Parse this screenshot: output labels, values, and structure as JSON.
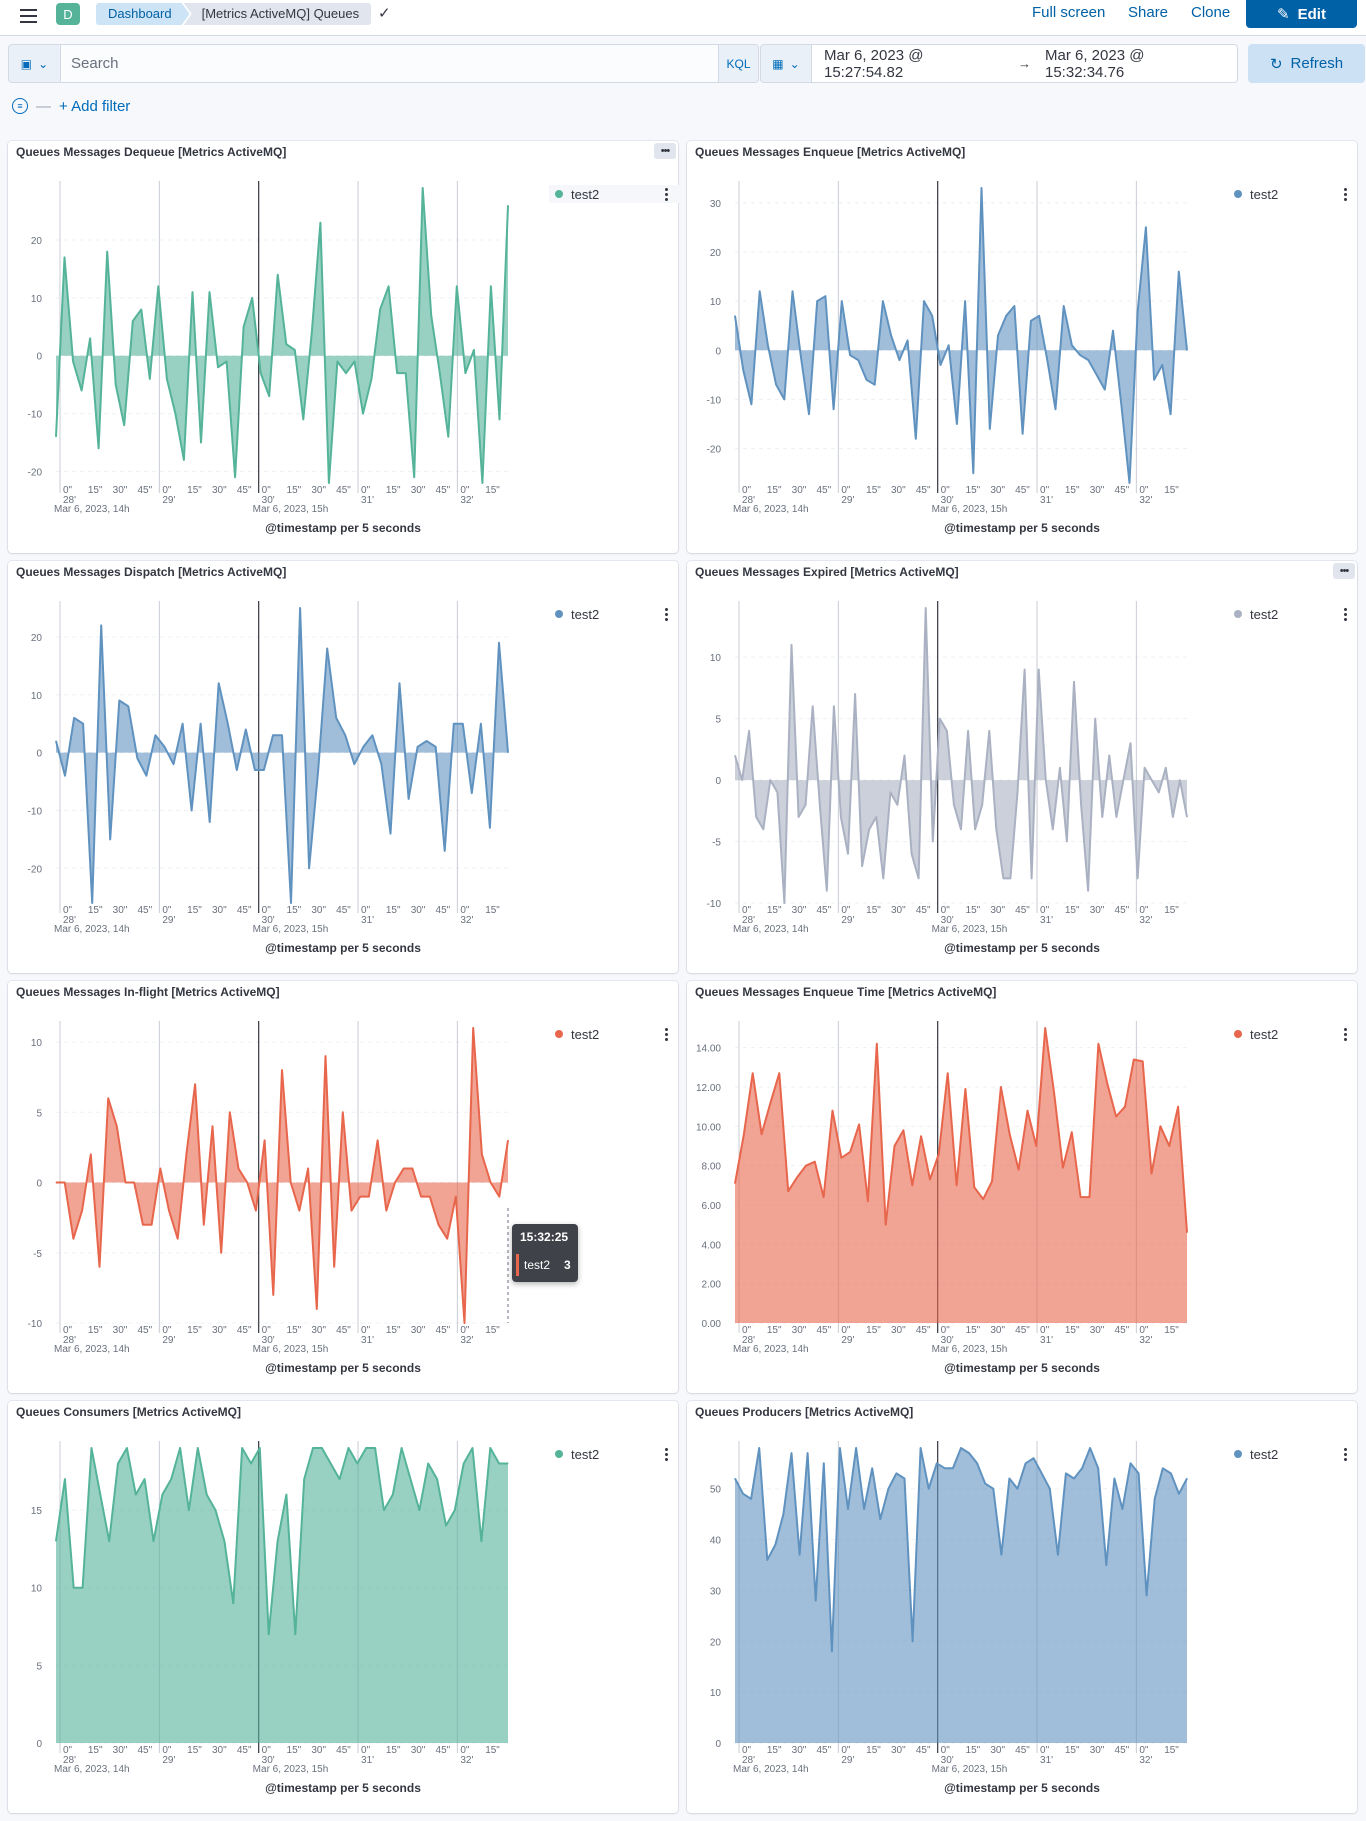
{
  "header": {
    "space_initial": "D",
    "breadcrumb": [
      "Dashboard",
      "[Metrics ActiveMQ] Queues"
    ],
    "full_screen": "Full screen",
    "share": "Share",
    "clone": "Clone",
    "edit": "Edit"
  },
  "query": {
    "search_placeholder": "Search",
    "language": "KQL",
    "start": "Mar 6, 2023 @ 15:27:54.82",
    "arrow": "→",
    "end": "Mar 6, 2023 @ 15:32:34.76",
    "refresh": "Refresh",
    "add_filter": "+ Add filter"
  },
  "axis": {
    "xtitle": "@timestamp per 5 seconds",
    "tick_groups": [
      {
        "labels": [
          "0\"",
          "15\"",
          "30\"",
          "45\""
        ],
        "minute": "28'",
        "date": "Mar 6, 2023, 14h"
      },
      {
        "labels": [
          "0\"",
          "15\"",
          "30\"",
          "45\""
        ],
        "minute": "29'",
        "date": ""
      },
      {
        "labels": [
          "0\"",
          "15\"",
          "30\"",
          "45\""
        ],
        "minute": "30'",
        "date": "Mar 6, 2023, 15h"
      },
      {
        "labels": [
          "0\"",
          "15\"",
          "30\"",
          "45\""
        ],
        "minute": "31'",
        "date": ""
      },
      {
        "labels": [
          "0\"",
          "15\""
        ],
        "minute": "32'",
        "date": ""
      }
    ]
  },
  "tooltip": {
    "time": "15:32:25",
    "series": "test2",
    "value": "3"
  },
  "panels": [
    {
      "title": "Queues Messages Dequeue [Metrics ActiveMQ]",
      "legend": "test2",
      "color": "#54b399",
      "show_options": true,
      "chart_data": {
        "type": "area",
        "series": [
          {
            "name": "test2",
            "values": [
              -14,
              17,
              -1,
              -6,
              3,
              -16,
              18,
              -5,
              -12,
              6,
              8,
              -4,
              12,
              -4,
              -10,
              -18,
              11,
              -15,
              11,
              -2,
              -1,
              -21,
              5,
              10,
              -3,
              -7,
              14,
              2,
              1,
              -11,
              4,
              23,
              -22,
              -1,
              -3,
              -1,
              -10,
              -4,
              8,
              12,
              -3,
              -3,
              -21,
              29,
              7,
              -3,
              -14,
              12,
              -3,
              1,
              -22,
              12,
              -11,
              26
            ]
          }
        ],
        "ylim": [
          -22,
          29
        ],
        "yticks": [
          -20,
          -10,
          0,
          10,
          20
        ]
      }
    },
    {
      "title": "Queues Messages Enqueue [Metrics ActiveMQ]",
      "legend": "test2",
      "color": "#6092c0",
      "show_options": false,
      "chart_data": {
        "type": "area",
        "series": [
          {
            "name": "test2",
            "values": [
              7,
              -4,
              -11,
              12,
              1,
              -7,
              -10,
              12,
              -1,
              -13,
              10,
              11,
              -12,
              10,
              -1,
              -2,
              -6,
              -7,
              10,
              3,
              -2,
              2,
              -18,
              10,
              7,
              -3,
              1,
              -15,
              10,
              -25,
              33,
              -16,
              3,
              7,
              9,
              -17,
              6,
              7,
              -2,
              -12,
              9,
              1,
              -1,
              -2,
              -5,
              -8,
              4,
              -11,
              -27,
              8,
              25,
              -6,
              -3,
              -13,
              16,
              0
            ]
          }
        ],
        "ylim": [
          -27,
          33
        ],
        "yticks": [
          -20,
          -10,
          0,
          10,
          20,
          30
        ]
      }
    },
    {
      "title": "Queues Messages Dispatch [Metrics ActiveMQ]",
      "legend": "test2",
      "color": "#6092c0",
      "show_options": false,
      "chart_data": {
        "type": "area",
        "series": [
          {
            "name": "test2",
            "values": [
              2,
              -4,
              6,
              5,
              -26,
              22,
              -15,
              9,
              8,
              -1,
              -4,
              3,
              1,
              -2,
              5,
              -10,
              5,
              -12,
              12,
              5,
              -3,
              4,
              -3,
              -3,
              3,
              3,
              -26,
              25,
              -20,
              -3,
              18,
              6,
              3,
              -2,
              1,
              3,
              -2,
              -14,
              12,
              -8,
              1,
              2,
              1,
              -17,
              5,
              5,
              -7,
              5,
              -13,
              19,
              0
            ]
          }
        ],
        "ylim": [
          -26,
          25
        ],
        "yticks": [
          -20,
          -10,
          0,
          10,
          20
        ]
      }
    },
    {
      "title": "Queues Messages Expired [Metrics ActiveMQ]",
      "legend": "test2",
      "color": "#aab1c2",
      "show_options": true,
      "chart_data": {
        "type": "area",
        "series": [
          {
            "name": "test2",
            "values": [
              2,
              0,
              4,
              -3,
              -4,
              0,
              -1,
              -10,
              11,
              -3,
              -2,
              6,
              -2,
              -9,
              6,
              -3,
              -6,
              7,
              -7,
              -4,
              -3,
              -8,
              -1,
              -2,
              2,
              -6,
              -8,
              14,
              -5,
              5,
              4,
              -2,
              -4,
              4,
              -4,
              -2,
              4,
              -4,
              -8,
              -8,
              -1,
              9,
              -8,
              9,
              0,
              -4,
              1,
              -5,
              8,
              -2,
              -9,
              5,
              -3,
              2,
              -3,
              0,
              3,
              -8,
              1,
              0,
              -1,
              1,
              -3,
              0,
              -3
            ]
          }
        ],
        "ylim": [
          -10,
          14
        ],
        "yticks": [
          -10,
          -5,
          0,
          5,
          10
        ]
      }
    },
    {
      "title": "Queues Messages In-flight [Metrics ActiveMQ]",
      "legend": "test2",
      "color": "#e7664c",
      "show_options": false,
      "chart_data": {
        "type": "area",
        "series": [
          {
            "name": "test2",
            "values": [
              0,
              0,
              -4,
              -2,
              2,
              -6,
              6,
              4,
              0,
              0,
              -3,
              -3,
              1,
              -2,
              -4,
              2,
              7,
              -3,
              4,
              -5,
              5,
              1,
              0,
              -2,
              3,
              -8,
              8,
              0,
              -2,
              1,
              -9,
              9,
              -6,
              5,
              -2,
              -1,
              -1,
              3,
              -2,
              0,
              1,
              1,
              -1,
              -1,
              -3,
              -4,
              -1,
              -10,
              11,
              2,
              0,
              -1,
              3
            ]
          }
        ],
        "ylim": [
          -10,
          11
        ],
        "yticks": [
          -10,
          -5,
          0,
          5,
          10
        ]
      }
    },
    {
      "title": "Queues Messages Enqueue Time [Metrics ActiveMQ]",
      "legend": "test2",
      "color": "#e7664c",
      "show_options": false,
      "chart_data": {
        "type": "area",
        "series": [
          {
            "name": "test2",
            "values": [
              7.1,
              9.6,
              12.7,
              9.6,
              11.2,
              12.7,
              6.7,
              7.4,
              8.0,
              8.2,
              6.4,
              10.8,
              8.4,
              8.7,
              10.1,
              6.2,
              14.2,
              5.0,
              9.0,
              9.8,
              7.0,
              9.5,
              7.3,
              8.6,
              12.7,
              7.0,
              11.9,
              6.9,
              6.3,
              7.2,
              12.0,
              9.6,
              7.8,
              10.8,
              9.0,
              15.0,
              11.7,
              7.9,
              9.7,
              6.4,
              6.4,
              14.2,
              12.2,
              10.5,
              11.0,
              13.4,
              13.3,
              7.6,
              10.0,
              9.0,
              11.0,
              4.6
            ]
          }
        ],
        "ylim": [
          0,
          15
        ],
        "yticks": [
          "0.00",
          "2.00",
          "4.00",
          "6.00",
          "8.00",
          "10.00",
          "12.00",
          "14.00"
        ]
      }
    },
    {
      "title": "Queues Consumers [Metrics ActiveMQ]",
      "legend": "test2",
      "color": "#54b399",
      "show_options": false,
      "chart_data": {
        "type": "area",
        "series": [
          {
            "name": "test2",
            "values": [
              13,
              17,
              10,
              10,
              19,
              16,
              13,
              18,
              19,
              16,
              17,
              13,
              16,
              17,
              19,
              15,
              19,
              16,
              15,
              13,
              9,
              19,
              18,
              19,
              7,
              13,
              16,
              7,
              17,
              19,
              19,
              18,
              17,
              19,
              18,
              19,
              19,
              15,
              16,
              19,
              17,
              15,
              18,
              17,
              14,
              15,
              18,
              19,
              13,
              19,
              18,
              18
            ]
          }
        ],
        "ylim": [
          0,
          19
        ],
        "yticks": [
          0,
          5,
          10,
          15
        ]
      }
    },
    {
      "title": "Queues Producers [Metrics ActiveMQ]",
      "legend": "test2",
      "color": "#6092c0",
      "show_options": false,
      "chart_data": {
        "type": "area",
        "series": [
          {
            "name": "test2",
            "values": [
              52,
              49,
              48,
              58,
              36,
              39,
              45,
              57,
              37,
              57,
              28,
              55,
              18,
              58,
              46,
              58,
              46,
              54,
              44,
              50,
              53,
              52,
              20,
              58,
              50,
              55,
              54,
              54,
              58,
              57,
              55,
              51,
              50,
              37,
              52,
              50,
              55,
              56,
              53,
              50,
              37,
              53,
              52,
              54,
              58,
              54,
              35,
              52,
              46,
              55,
              53,
              29,
              48,
              54,
              53,
              49,
              52
            ]
          }
        ],
        "ylim": [
          0,
          58
        ],
        "yticks": [
          0,
          10,
          20,
          30,
          40,
          50
        ]
      }
    }
  ]
}
